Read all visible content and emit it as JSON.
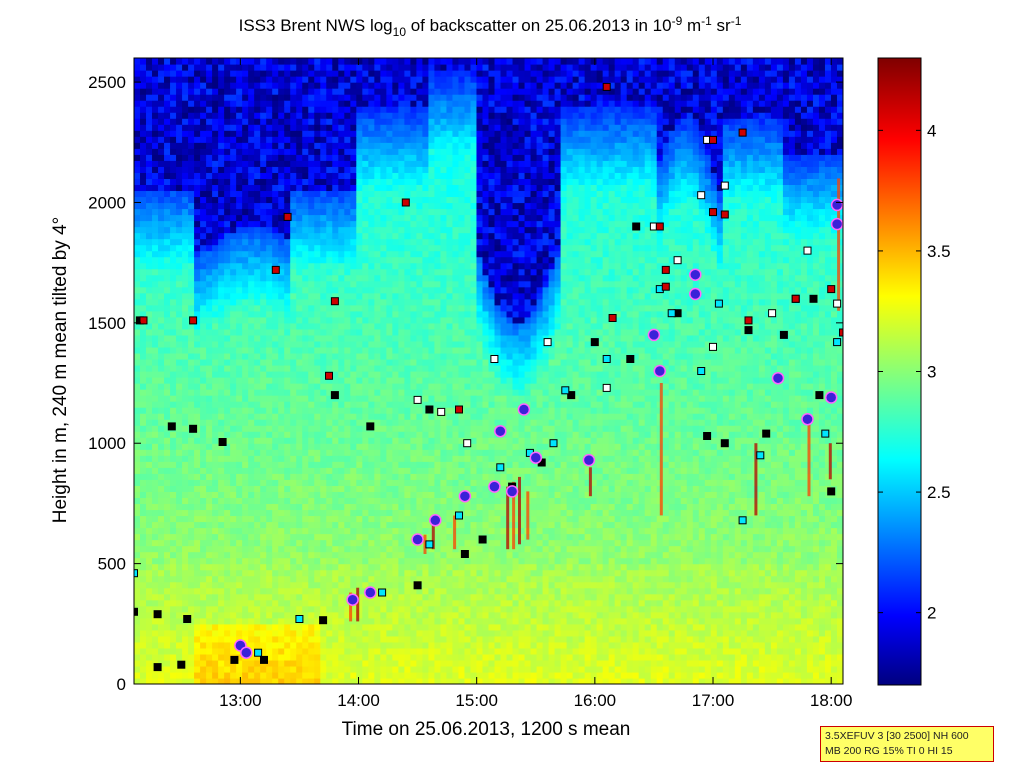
{
  "chart_data": {
    "type": "heatmap",
    "title": {
      "parts": [
        {
          "t": "ISS3 Brent NWS log"
        },
        {
          "t": "10",
          "sub": true
        },
        {
          "t": " of backscatter on 25.06.2013 in 10"
        },
        {
          "t": "-9",
          "sup": true
        },
        {
          "t": " m"
        },
        {
          "t": "-1",
          "sup": true
        },
        {
          "t": " sr"
        },
        {
          "t": "-1",
          "sup": true
        }
      ]
    },
    "xlabel": "Time on 25.06.2013, 1200 s mean",
    "ylabel": "Height in m, 240 m mean tilted by 4°",
    "xlim": [
      12.1,
      18.1
    ],
    "ylim": [
      0,
      2600
    ],
    "x_ticks": [
      13,
      14,
      15,
      16,
      17,
      18
    ],
    "x_tick_labels": [
      "13:00",
      "14:00",
      "15:00",
      "16:00",
      "17:00",
      "18:00"
    ],
    "y_ticks": [
      0,
      500,
      1000,
      1500,
      2000,
      2500
    ],
    "y_tick_labels": [
      "0",
      "500",
      "1000",
      "1500",
      "2000",
      "2500"
    ],
    "colorbar": {
      "lim": [
        1.7,
        4.3
      ],
      "ticks": [
        2,
        2.5,
        3,
        3.5,
        4
      ],
      "tick_labels": [
        "2",
        "2.5",
        "3",
        "3.5",
        "4"
      ],
      "colormap": "jet"
    },
    "marker_series": [
      {
        "marker": "square",
        "fill": "#000000",
        "points": [
          [
            12.15,
            1510
          ],
          [
            12.42,
            1070
          ],
          [
            12.6,
            1060
          ],
          [
            12.85,
            1005
          ],
          [
            12.1,
            300
          ],
          [
            12.3,
            290
          ],
          [
            12.55,
            270
          ],
          [
            12.3,
            70
          ],
          [
            12.5,
            80
          ],
          [
            12.95,
            100
          ],
          [
            13.2,
            100
          ],
          [
            13.7,
            265
          ],
          [
            14.5,
            410
          ],
          [
            14.9,
            540
          ],
          [
            15.05,
            600
          ],
          [
            13.8,
            1200
          ],
          [
            14.1,
            1070
          ],
          [
            14.6,
            1140
          ],
          [
            15.3,
            820
          ],
          [
            15.55,
            920
          ],
          [
            15.8,
            1200
          ],
          [
            16.0,
            1420
          ],
          [
            16.3,
            1350
          ],
          [
            16.35,
            1900
          ],
          [
            16.7,
            1540
          ],
          [
            16.95,
            1030
          ],
          [
            17.1,
            1000
          ],
          [
            17.3,
            1470
          ],
          [
            17.6,
            1450
          ],
          [
            17.9,
            1200
          ],
          [
            18.0,
            800
          ],
          [
            17.85,
            1600
          ],
          [
            17.45,
            1040
          ]
        ]
      },
      {
        "marker": "square",
        "fill": "#00e5ff",
        "points": [
          [
            12.1,
            460
          ],
          [
            13.15,
            130
          ],
          [
            13.5,
            270
          ],
          [
            14.2,
            380
          ],
          [
            14.6,
            580
          ],
          [
            14.85,
            700
          ],
          [
            15.2,
            900
          ],
          [
            15.45,
            960
          ],
          [
            15.65,
            1000
          ],
          [
            16.55,
            1640
          ],
          [
            16.65,
            1540
          ],
          [
            16.9,
            1300
          ],
          [
            17.05,
            1580
          ],
          [
            17.25,
            680
          ],
          [
            17.4,
            950
          ],
          [
            17.7,
            1600
          ],
          [
            17.95,
            1040
          ],
          [
            18.05,
            1420
          ],
          [
            15.75,
            1220
          ],
          [
            16.1,
            1350
          ]
        ]
      },
      {
        "marker": "square",
        "fill": "#ffffff",
        "points": [
          [
            14.5,
            1180
          ],
          [
            14.7,
            1130
          ],
          [
            15.15,
            1350
          ],
          [
            15.6,
            1420
          ],
          [
            16.1,
            1230
          ],
          [
            16.5,
            1900
          ],
          [
            16.7,
            1760
          ],
          [
            16.9,
            2030
          ],
          [
            17.1,
            2070
          ],
          [
            17.5,
            1540
          ],
          [
            17.8,
            1800
          ],
          [
            18.05,
            1580
          ],
          [
            16.95,
            2260
          ],
          [
            17.0,
            1400
          ],
          [
            14.92,
            1000
          ]
        ]
      },
      {
        "marker": "square",
        "fill": "#cc0000",
        "points": [
          [
            12.18,
            1510
          ],
          [
            12.6,
            1510
          ],
          [
            13.3,
            1720
          ],
          [
            13.4,
            1940
          ],
          [
            13.75,
            1280
          ],
          [
            13.8,
            1590
          ],
          [
            16.1,
            2480
          ],
          [
            14.4,
            2000
          ],
          [
            16.55,
            1900
          ],
          [
            16.6,
            1720
          ],
          [
            16.6,
            1650
          ],
          [
            17.0,
            1960
          ],
          [
            17.1,
            1950
          ],
          [
            17.0,
            2260
          ],
          [
            17.3,
            1510
          ],
          [
            17.7,
            1600
          ],
          [
            18.1,
            1460
          ],
          [
            18.0,
            1640
          ],
          [
            16.15,
            1520
          ],
          [
            17.25,
            2290
          ],
          [
            14.85,
            1140
          ]
        ]
      },
      {
        "marker": "circle",
        "fill": "#3a22d8",
        "points": [
          [
            13.0,
            160
          ],
          [
            13.05,
            130
          ],
          [
            13.95,
            350
          ],
          [
            14.1,
            380
          ],
          [
            14.5,
            600
          ],
          [
            14.65,
            680
          ],
          [
            14.9,
            780
          ],
          [
            15.15,
            820
          ],
          [
            15.3,
            800
          ],
          [
            15.5,
            940
          ],
          [
            15.95,
            930
          ],
          [
            16.5,
            1450
          ],
          [
            16.55,
            1300
          ],
          [
            16.85,
            1700
          ],
          [
            16.85,
            1620
          ],
          [
            17.55,
            1270
          ],
          [
            17.8,
            1100
          ],
          [
            18.0,
            1190
          ],
          [
            18.05,
            1910
          ],
          [
            18.05,
            1990
          ],
          [
            15.4,
            1140
          ],
          [
            15.2,
            1050
          ]
        ]
      }
    ]
  },
  "info_box": {
    "line1": "3.5XEFUV 3 [30 2500] NH 600",
    "line2": "MB 200 RG 15% TI 0 HI 15"
  }
}
